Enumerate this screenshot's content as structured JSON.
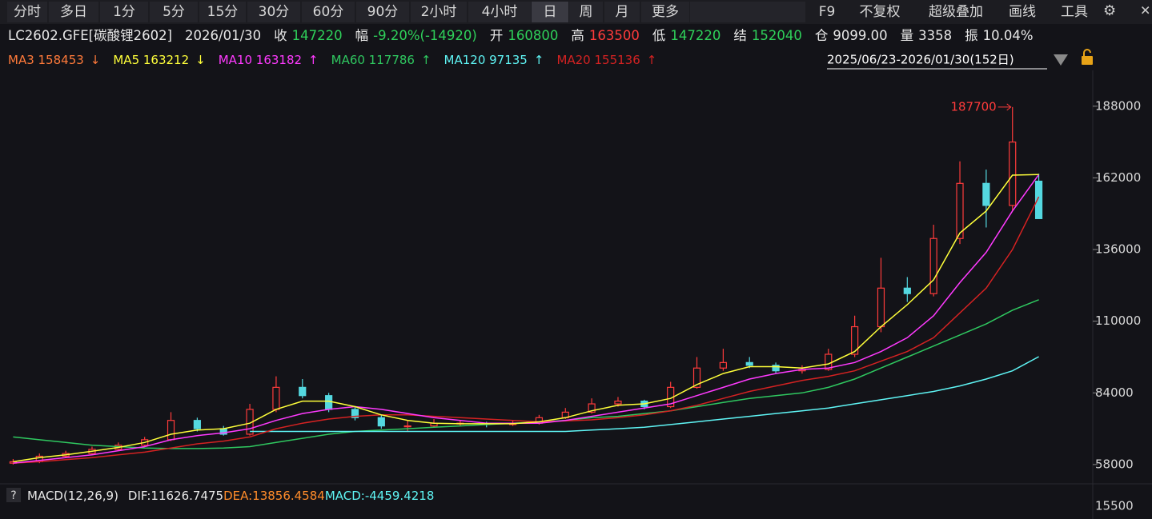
{
  "toolbar": {
    "left": [
      "分时",
      "多日",
      "1分",
      "5分",
      "15分",
      "30分",
      "60分",
      "90分",
      "2小时",
      "4小时",
      "日",
      "周",
      "月",
      "更多"
    ],
    "active": 10,
    "right": [
      "F9",
      "不复权",
      "超级叠加",
      "画线",
      "工具"
    ]
  },
  "header": {
    "symbol": "LC2602.GFE[碳酸锂2602]",
    "date": "2026/01/30",
    "fields": [
      {
        "label": "收",
        "value": "147220",
        "color": "#2fd05a"
      },
      {
        "label": "幅",
        "value": "-9.20%(-14920)",
        "color": "#2fd05a"
      },
      {
        "label": "开",
        "value": "160800",
        "color": "#2fd05a"
      },
      {
        "label": "高",
        "value": "163500",
        "color": "#ff3b3b"
      },
      {
        "label": "低",
        "value": "147220",
        "color": "#2fd05a"
      },
      {
        "label": "结",
        "value": "152040",
        "color": "#2fd05a"
      },
      {
        "label": "仓",
        "value": "9099.00",
        "color": "#e8e8e8"
      },
      {
        "label": "量",
        "value": "3358",
        "color": "#e8e8e8"
      },
      {
        "label": "振",
        "value": "10.04%",
        "color": "#e8e8e8"
      }
    ]
  },
  "ma_legend": [
    {
      "label": "MA3 158453",
      "arrow": "↓",
      "color": "#ff7a3a"
    },
    {
      "label": "MA5 163212",
      "arrow": "↓",
      "color": "#ffff3a"
    },
    {
      "label": "MA10 163182",
      "arrow": "↑",
      "color": "#ff3aff"
    },
    {
      "label": "MA60 117786",
      "arrow": "↑",
      "color": "#2fc860"
    },
    {
      "label": "MA120 97135",
      "arrow": "↑",
      "color": "#5ff5f5"
    },
    {
      "label": "MA20 155136",
      "arrow": "↑",
      "color": "#d42222"
    }
  ],
  "range_label": "2025/06/23-2026/01/30(152日)",
  "chart_data": {
    "type": "candlestick",
    "up_color": "#ff3b3b",
    "down_color": "#54d8e0",
    "ylim": [
      51000,
      201000
    ],
    "yticks": [
      58000,
      84000,
      110000,
      136000,
      162000,
      188000
    ],
    "peak_label": 187700,
    "ohlc": [
      [
        58500,
        60000,
        58000,
        59000
      ],
      [
        59000,
        62000,
        58500,
        61000
      ],
      [
        61000,
        63000,
        60500,
        62000
      ],
      [
        62000,
        64500,
        61500,
        63500
      ],
      [
        63500,
        66000,
        63000,
        65000
      ],
      [
        65000,
        68000,
        64500,
        67000
      ],
      [
        67000,
        77000,
        66500,
        74000
      ],
      [
        74000,
        75000,
        70000,
        71000
      ],
      [
        71000,
        72000,
        68500,
        69000
      ],
      [
        69000,
        80000,
        68500,
        78000
      ],
      [
        78000,
        90000,
        77000,
        86000
      ],
      [
        86000,
        89000,
        82000,
        83000
      ],
      [
        83000,
        84000,
        77000,
        78000
      ],
      [
        78000,
        79000,
        74000,
        75000
      ],
      [
        75000,
        76000,
        71000,
        72000
      ],
      [
        72000,
        74000,
        70000,
        72000
      ],
      [
        72000,
        74500,
        71500,
        73000
      ],
      [
        73000,
        74000,
        72000,
        73000
      ],
      [
        73000,
        73500,
        71500,
        72500
      ],
      [
        72500,
        74000,
        72000,
        73000
      ],
      [
        73000,
        76000,
        72500,
        75000
      ],
      [
        75000,
        78500,
        74500,
        77000
      ],
      [
        77000,
        82000,
        76500,
        80000
      ],
      [
        80000,
        82500,
        79000,
        81000
      ],
      [
        81000,
        81500,
        78000,
        79000
      ],
      [
        79000,
        88000,
        78500,
        86000
      ],
      [
        86000,
        97000,
        85500,
        93000
      ],
      [
        93000,
        100000,
        92000,
        95000
      ],
      [
        95000,
        97000,
        93000,
        94000
      ],
      [
        94000,
        95000,
        91000,
        92000
      ],
      [
        92000,
        94000,
        91000,
        92500
      ],
      [
        92500,
        100000,
        92000,
        98000
      ],
      [
        98000,
        112000,
        97000,
        108000
      ],
      [
        108000,
        133000,
        106000,
        122000
      ],
      [
        122000,
        126000,
        117000,
        120000
      ],
      [
        120000,
        145000,
        119000,
        140000
      ],
      [
        140000,
        168000,
        138000,
        160000
      ],
      [
        160000,
        165000,
        144000,
        152000
      ],
      [
        152000,
        187700,
        150000,
        175000
      ],
      [
        160800,
        163500,
        147220,
        147220
      ]
    ],
    "series": [
      {
        "color": "#2fc860",
        "values": [
          68000,
          67000,
          66000,
          65000,
          64500,
          64000,
          63800,
          63800,
          64000,
          64500,
          66000,
          67500,
          69000,
          70000,
          70500,
          71000,
          71500,
          72000,
          72500,
          73000,
          73500,
          74000,
          75000,
          75500,
          76500,
          77500,
          79000,
          80500,
          82000,
          83000,
          84000,
          86000,
          89000,
          93000,
          97000,
          101000,
          105000,
          109000,
          114000,
          117786
        ]
      },
      {
        "color": "#5ff5f5",
        "values": [
          null,
          null,
          null,
          null,
          null,
          null,
          null,
          null,
          null,
          70000,
          70000,
          70000,
          70000,
          70000,
          70000,
          70000,
          70000,
          70000,
          70000,
          70000,
          70000,
          70000,
          70500,
          71000,
          71500,
          72500,
          73500,
          74500,
          75500,
          76500,
          77500,
          78500,
          80000,
          81500,
          83000,
          84500,
          86500,
          89000,
          92000,
          97135
        ]
      },
      {
        "color": "#d42222",
        "values": [
          58500,
          59000,
          59800,
          60500,
          61500,
          62500,
          64000,
          65500,
          66500,
          68000,
          71000,
          73000,
          74500,
          75500,
          76000,
          76000,
          75500,
          75000,
          74500,
          74000,
          73500,
          73800,
          74200,
          75000,
          76000,
          77500,
          79500,
          82000,
          84500,
          86500,
          88500,
          90000,
          92000,
          95500,
          99000,
          104000,
          113000,
          122000,
          136000,
          155136
        ]
      },
      {
        "color": "#ff3aff",
        "values": [
          58500,
          59500,
          60500,
          61500,
          63000,
          64500,
          67000,
          68500,
          69500,
          71000,
          74000,
          76500,
          78000,
          79000,
          78000,
          76500,
          75000,
          74000,
          73000,
          73000,
          73000,
          74000,
          75500,
          77000,
          78500,
          80000,
          83000,
          86000,
          89000,
          91000,
          92500,
          93000,
          95000,
          99000,
          104000,
          112000,
          124000,
          135000,
          150000,
          163182
        ]
      },
      {
        "color": "#ffff3a",
        "values": [
          59000,
          60500,
          61500,
          62800,
          64200,
          66000,
          69000,
          70500,
          71000,
          73000,
          78000,
          81000,
          81000,
          79000,
          76000,
          74000,
          73000,
          72800,
          72800,
          72800,
          73500,
          75000,
          77500,
          79500,
          80000,
          82000,
          87000,
          91000,
          93500,
          93500,
          93000,
          94500,
          99000,
          108000,
          116000,
          125000,
          142000,
          150000,
          163000,
          163212
        ]
      }
    ]
  },
  "macd": {
    "title": "MACD(12,26,9)",
    "dif": "DIF:11626.7475",
    "dea": "DEA:13856.4584",
    "macd": "MACD:-4459.4218",
    "help": "?",
    "ytick": 15500
  }
}
